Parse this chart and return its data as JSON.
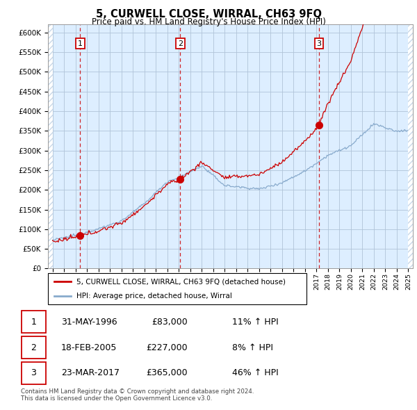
{
  "title": "5, CURWELL CLOSE, WIRRAL, CH63 9FQ",
  "subtitle": "Price paid vs. HM Land Registry's House Price Index (HPI)",
  "property_label": "5, CURWELL CLOSE, WIRRAL, CH63 9FQ (detached house)",
  "hpi_label": "HPI: Average price, detached house, Wirral",
  "sale_color": "#cc0000",
  "hpi_color": "#88aacc",
  "sale_dates": [
    1996.415,
    2005.12,
    2017.22
  ],
  "sale_prices": [
    83000,
    227000,
    365000
  ],
  "sale_labels": [
    "1",
    "2",
    "3"
  ],
  "table_rows": [
    {
      "num": "1",
      "date": "31-MAY-1996",
      "price": "£83,000",
      "hpi": "11% ↑ HPI"
    },
    {
      "num": "2",
      "date": "18-FEB-2005",
      "price": "£227,000",
      "hpi": "8% ↑ HPI"
    },
    {
      "num": "3",
      "date": "23-MAR-2017",
      "price": "£365,000",
      "hpi": "46% ↑ HPI"
    }
  ],
  "footnote1": "Contains HM Land Registry data © Crown copyright and database right 2024.",
  "footnote2": "This data is licensed under the Open Government Licence v3.0.",
  "ylim": [
    0,
    620000
  ],
  "ytick_vals": [
    0,
    50000,
    100000,
    150000,
    200000,
    250000,
    300000,
    350000,
    400000,
    450000,
    500000,
    550000,
    600000
  ],
  "xlim_start": 1993.6,
  "xlim_end": 2025.4,
  "data_start": 1994.0,
  "data_end": 2025.0,
  "bg_color": "#ddeeff",
  "hatch_color": "#c8d8e8",
  "grid_color": "#b0c4d8"
}
